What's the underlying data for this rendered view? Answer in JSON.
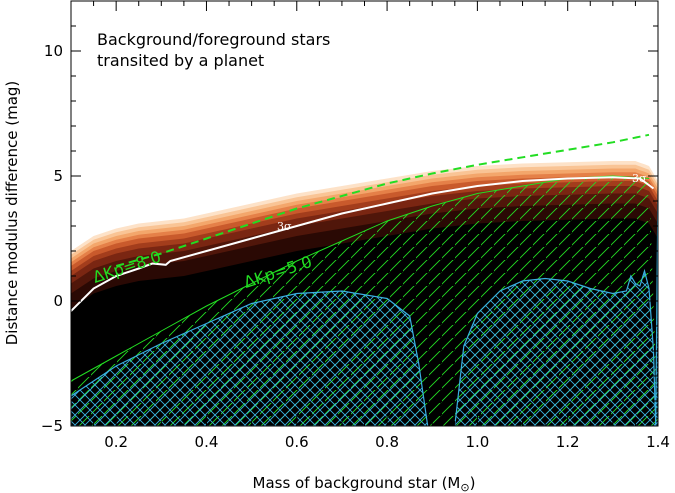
{
  "chart_data": {
    "type": "area",
    "xlabel_main": "Mass of background star (M",
    "xlabel_sub": "⊙",
    "xlabel_end": ")",
    "ylabel": "Distance modulus difference (mag)",
    "xlim": [
      0.1,
      1.4
    ],
    "ylim": [
      -5,
      12
    ],
    "x_ticks": [
      0.2,
      0.4,
      0.6,
      0.8,
      1.0,
      1.2,
      1.4
    ],
    "x_tick_labels": [
      "0.2",
      "0.4",
      "0.6",
      "0.8",
      "1.0",
      "1.2",
      "1.4"
    ],
    "y_ticks": [
      -5,
      0,
      5,
      10
    ],
    "y_tick_labels": [
      "−5",
      "0",
      "5",
      "10"
    ],
    "annotation_lines": [
      "Background/foreground stars",
      "transited by a planet"
    ],
    "labels": {
      "dkp8": "ΔKp=8.0",
      "dkp5": "ΔKp=5.0",
      "sigma1": "3σ",
      "sigma2": "3σ"
    },
    "colors": {
      "green": "#22dd22",
      "white": "#ffffff",
      "blue": "#3ab0e0",
      "dark": "#000000"
    },
    "density_top": {
      "x": [
        0.1,
        0.15,
        0.2,
        0.25,
        0.3,
        0.35,
        0.4,
        0.5,
        0.6,
        0.7,
        0.8,
        0.9,
        1.0,
        1.1,
        1.2,
        1.3,
        1.35,
        1.38,
        1.4
      ],
      "y": [
        2.0,
        2.6,
        2.9,
        3.1,
        3.2,
        3.3,
        3.5,
        3.9,
        4.3,
        4.6,
        4.9,
        5.2,
        5.4,
        5.5,
        5.55,
        5.6,
        5.6,
        5.4,
        4.8
      ]
    },
    "three_sigma_line": {
      "x": [
        0.1,
        0.15,
        0.2,
        0.25,
        0.28,
        0.31,
        0.32,
        0.4,
        0.5,
        0.6,
        0.7,
        0.8,
        0.9,
        1.0,
        1.1,
        1.2,
        1.3,
        1.36,
        1.39
      ],
      "y": [
        -0.4,
        0.5,
        1.0,
        1.3,
        1.5,
        1.45,
        1.6,
        2.0,
        2.5,
        3.0,
        3.5,
        3.9,
        4.3,
        4.6,
        4.8,
        4.9,
        4.95,
        4.9,
        4.5
      ]
    },
    "dkp8_dashed": {
      "x": [
        0.2,
        0.3,
        0.4,
        0.5,
        0.6,
        0.7,
        0.8,
        0.9,
        1.0,
        1.1,
        1.2,
        1.3,
        1.38
      ],
      "y": [
        1.4,
        1.9,
        2.5,
        3.1,
        3.7,
        4.2,
        4.7,
        5.1,
        5.45,
        5.75,
        6.05,
        6.35,
        6.65
      ]
    },
    "dkp5_solid": {
      "x": [
        0.1,
        0.2,
        0.3,
        0.4,
        0.5,
        0.6,
        0.7,
        0.8,
        0.9,
        1.0,
        1.1,
        1.2,
        1.3,
        1.38
      ],
      "y": [
        -3.2,
        -2.2,
        -1.2,
        -0.2,
        0.7,
        1.6,
        2.4,
        3.2,
        3.8,
        4.3,
        4.6,
        4.9,
        5.0,
        4.9
      ]
    },
    "blue_region_1": {
      "x": [
        0.1,
        0.15,
        0.2,
        0.3,
        0.4,
        0.5,
        0.6,
        0.7,
        0.8,
        0.85,
        0.87,
        0.89
      ],
      "y": [
        -3.8,
        -3.2,
        -2.6,
        -1.7,
        -0.9,
        -0.1,
        0.3,
        0.4,
        0.1,
        -0.6,
        -2.5,
        -5.0
      ]
    },
    "blue_region_2": {
      "x": [
        0.95,
        0.97,
        1.0,
        1.05,
        1.1,
        1.15,
        1.2,
        1.25,
        1.3,
        1.33,
        1.34,
        1.35,
        1.36,
        1.37,
        1.38,
        1.39,
        1.395
      ],
      "y": [
        -5.0,
        -1.8,
        -0.5,
        0.4,
        0.8,
        0.9,
        0.8,
        0.5,
        0.3,
        0.4,
        1.0,
        0.7,
        0.6,
        1.2,
        0.5,
        -2.0,
        -5.0
      ]
    },
    "blue_region_3": {
      "x": [
        1.395,
        1.4,
        1.4
      ],
      "y": [
        -5.0,
        4.5,
        -5.0
      ]
    }
  }
}
